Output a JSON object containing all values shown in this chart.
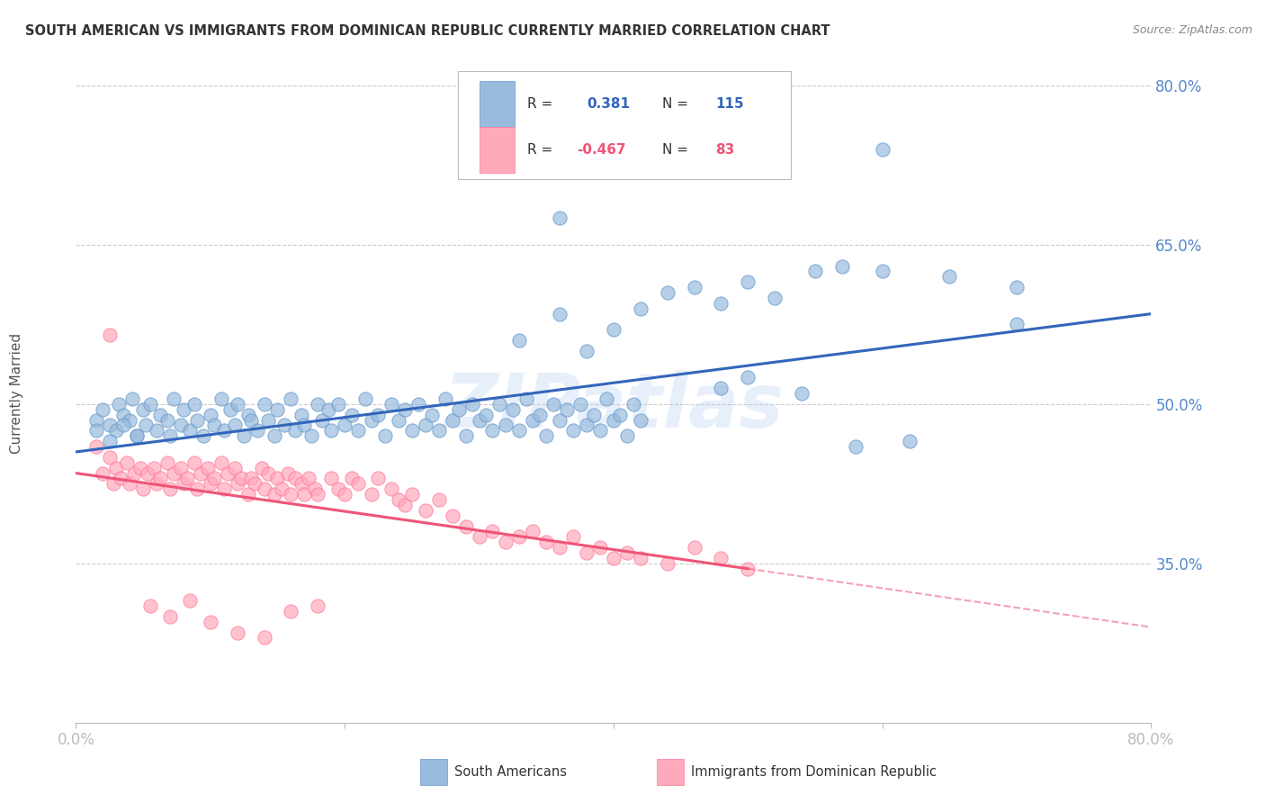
{
  "title": "SOUTH AMERICAN VS IMMIGRANTS FROM DOMINICAN REPUBLIC CURRENTLY MARRIED CORRELATION CHART",
  "source": "Source: ZipAtlas.com",
  "ylabel": "Currently Married",
  "watermark": "ZIPatlas",
  "blue_color": "#99BBDD",
  "blue_edge_color": "#6699CC",
  "pink_color": "#FFAABB",
  "pink_edge_color": "#FF7799",
  "blue_line_color": "#3366BB",
  "pink_line_color": "#EE5577",
  "y_tick_values": [
    35.0,
    50.0,
    65.0,
    80.0
  ],
  "x_tick_values": [
    0.0,
    20.0,
    40.0,
    60.0,
    80.0
  ],
  "blue_scatter": [
    [
      1.5,
      48.5
    ],
    [
      2.0,
      49.5
    ],
    [
      2.5,
      48.0
    ],
    [
      3.0,
      47.5
    ],
    [
      3.2,
      50.0
    ],
    [
      3.5,
      49.0
    ],
    [
      4.0,
      48.5
    ],
    [
      4.2,
      50.5
    ],
    [
      4.5,
      47.0
    ],
    [
      5.0,
      49.5
    ],
    [
      5.2,
      48.0
    ],
    [
      5.5,
      50.0
    ],
    [
      6.0,
      47.5
    ],
    [
      6.3,
      49.0
    ],
    [
      6.8,
      48.5
    ],
    [
      7.0,
      47.0
    ],
    [
      7.3,
      50.5
    ],
    [
      7.8,
      48.0
    ],
    [
      8.0,
      49.5
    ],
    [
      8.5,
      47.5
    ],
    [
      8.8,
      50.0
    ],
    [
      9.0,
      48.5
    ],
    [
      9.5,
      47.0
    ],
    [
      10.0,
      49.0
    ],
    [
      10.3,
      48.0
    ],
    [
      10.8,
      50.5
    ],
    [
      11.0,
      47.5
    ],
    [
      11.5,
      49.5
    ],
    [
      11.8,
      48.0
    ],
    [
      12.0,
      50.0
    ],
    [
      12.5,
      47.0
    ],
    [
      12.8,
      49.0
    ],
    [
      13.0,
      48.5
    ],
    [
      13.5,
      47.5
    ],
    [
      14.0,
      50.0
    ],
    [
      14.3,
      48.5
    ],
    [
      14.8,
      47.0
    ],
    [
      15.0,
      49.5
    ],
    [
      15.5,
      48.0
    ],
    [
      16.0,
      50.5
    ],
    [
      16.3,
      47.5
    ],
    [
      16.8,
      49.0
    ],
    [
      17.0,
      48.0
    ],
    [
      17.5,
      47.0
    ],
    [
      18.0,
      50.0
    ],
    [
      18.3,
      48.5
    ],
    [
      18.8,
      49.5
    ],
    [
      19.0,
      47.5
    ],
    [
      19.5,
      50.0
    ],
    [
      20.0,
      48.0
    ],
    [
      20.5,
      49.0
    ],
    [
      21.0,
      47.5
    ],
    [
      21.5,
      50.5
    ],
    [
      22.0,
      48.5
    ],
    [
      22.5,
      49.0
    ],
    [
      23.0,
      47.0
    ],
    [
      23.5,
      50.0
    ],
    [
      24.0,
      48.5
    ],
    [
      24.5,
      49.5
    ],
    [
      25.0,
      47.5
    ],
    [
      25.5,
      50.0
    ],
    [
      26.0,
      48.0
    ],
    [
      26.5,
      49.0
    ],
    [
      27.0,
      47.5
    ],
    [
      27.5,
      50.5
    ],
    [
      28.0,
      48.5
    ],
    [
      28.5,
      49.5
    ],
    [
      29.0,
      47.0
    ],
    [
      29.5,
      50.0
    ],
    [
      30.0,
      48.5
    ],
    [
      30.5,
      49.0
    ],
    [
      31.0,
      47.5
    ],
    [
      31.5,
      50.0
    ],
    [
      32.0,
      48.0
    ],
    [
      32.5,
      49.5
    ],
    [
      33.0,
      47.5
    ],
    [
      33.5,
      50.5
    ],
    [
      34.0,
      48.5
    ],
    [
      34.5,
      49.0
    ],
    [
      35.0,
      47.0
    ],
    [
      35.5,
      50.0
    ],
    [
      36.0,
      48.5
    ],
    [
      36.5,
      49.5
    ],
    [
      37.0,
      47.5
    ],
    [
      37.5,
      50.0
    ],
    [
      38.0,
      48.0
    ],
    [
      38.5,
      49.0
    ],
    [
      39.0,
      47.5
    ],
    [
      39.5,
      50.5
    ],
    [
      40.0,
      48.5
    ],
    [
      40.5,
      49.0
    ],
    [
      41.0,
      47.0
    ],
    [
      41.5,
      50.0
    ],
    [
      42.0,
      48.5
    ],
    [
      1.5,
      47.5
    ],
    [
      2.5,
      46.5
    ],
    [
      3.5,
      48.0
    ],
    [
      4.5,
      47.0
    ],
    [
      33.0,
      56.0
    ],
    [
      36.0,
      58.5
    ],
    [
      38.0,
      55.0
    ],
    [
      40.0,
      57.0
    ],
    [
      42.0,
      59.0
    ],
    [
      44.0,
      60.5
    ],
    [
      46.0,
      61.0
    ],
    [
      48.0,
      59.5
    ],
    [
      50.0,
      61.5
    ],
    [
      52.0,
      60.0
    ],
    [
      55.0,
      62.5
    ],
    [
      57.0,
      63.0
    ],
    [
      60.0,
      62.5
    ],
    [
      65.0,
      62.0
    ],
    [
      70.0,
      61.0
    ],
    [
      36.0,
      67.5
    ],
    [
      60.0,
      74.0
    ],
    [
      48.0,
      51.5
    ],
    [
      50.0,
      52.5
    ],
    [
      54.0,
      51.0
    ],
    [
      58.0,
      46.0
    ],
    [
      62.0,
      46.5
    ],
    [
      70.0,
      57.5
    ]
  ],
  "pink_scatter": [
    [
      1.5,
      46.0
    ],
    [
      2.0,
      43.5
    ],
    [
      2.5,
      45.0
    ],
    [
      2.8,
      42.5
    ],
    [
      3.0,
      44.0
    ],
    [
      3.3,
      43.0
    ],
    [
      3.8,
      44.5
    ],
    [
      4.0,
      42.5
    ],
    [
      4.3,
      43.5
    ],
    [
      4.8,
      44.0
    ],
    [
      5.0,
      42.0
    ],
    [
      5.3,
      43.5
    ],
    [
      5.8,
      44.0
    ],
    [
      6.0,
      42.5
    ],
    [
      6.3,
      43.0
    ],
    [
      6.8,
      44.5
    ],
    [
      7.0,
      42.0
    ],
    [
      7.3,
      43.5
    ],
    [
      7.8,
      44.0
    ],
    [
      8.0,
      42.5
    ],
    [
      8.3,
      43.0
    ],
    [
      8.8,
      44.5
    ],
    [
      9.0,
      42.0
    ],
    [
      9.3,
      43.5
    ],
    [
      9.8,
      44.0
    ],
    [
      10.0,
      42.5
    ],
    [
      10.3,
      43.0
    ],
    [
      10.8,
      44.5
    ],
    [
      11.0,
      42.0
    ],
    [
      11.3,
      43.5
    ],
    [
      11.8,
      44.0
    ],
    [
      12.0,
      42.5
    ],
    [
      12.3,
      43.0
    ],
    [
      12.8,
      41.5
    ],
    [
      13.0,
      43.0
    ],
    [
      13.3,
      42.5
    ],
    [
      13.8,
      44.0
    ],
    [
      14.0,
      42.0
    ],
    [
      14.3,
      43.5
    ],
    [
      14.8,
      41.5
    ],
    [
      15.0,
      43.0
    ],
    [
      15.3,
      42.0
    ],
    [
      15.8,
      43.5
    ],
    [
      16.0,
      41.5
    ],
    [
      16.3,
      43.0
    ],
    [
      16.8,
      42.5
    ],
    [
      17.0,
      41.5
    ],
    [
      17.3,
      43.0
    ],
    [
      17.8,
      42.0
    ],
    [
      18.0,
      41.5
    ],
    [
      19.0,
      43.0
    ],
    [
      19.5,
      42.0
    ],
    [
      20.0,
      41.5
    ],
    [
      20.5,
      43.0
    ],
    [
      21.0,
      42.5
    ],
    [
      22.0,
      41.5
    ],
    [
      22.5,
      43.0
    ],
    [
      23.5,
      42.0
    ],
    [
      24.0,
      41.0
    ],
    [
      24.5,
      40.5
    ],
    [
      25.0,
      41.5
    ],
    [
      26.0,
      40.0
    ],
    [
      27.0,
      41.0
    ],
    [
      28.0,
      39.5
    ],
    [
      29.0,
      38.5
    ],
    [
      30.0,
      37.5
    ],
    [
      31.0,
      38.0
    ],
    [
      32.0,
      37.0
    ],
    [
      33.0,
      37.5
    ],
    [
      34.0,
      38.0
    ],
    [
      35.0,
      37.0
    ],
    [
      36.0,
      36.5
    ],
    [
      37.0,
      37.5
    ],
    [
      38.0,
      36.0
    ],
    [
      39.0,
      36.5
    ],
    [
      40.0,
      35.5
    ],
    [
      41.0,
      36.0
    ],
    [
      42.0,
      35.5
    ],
    [
      44.0,
      35.0
    ],
    [
      46.0,
      36.5
    ],
    [
      48.0,
      35.5
    ],
    [
      50.0,
      34.5
    ],
    [
      2.5,
      56.5
    ],
    [
      5.5,
      31.0
    ],
    [
      7.0,
      30.0
    ],
    [
      8.5,
      31.5
    ],
    [
      10.0,
      29.5
    ],
    [
      12.0,
      28.5
    ],
    [
      14.0,
      28.0
    ],
    [
      16.0,
      30.5
    ],
    [
      18.0,
      31.0
    ]
  ],
  "blue_line": {
    "x0": 0,
    "x1": 80,
    "y0": 45.5,
    "y1": 58.5
  },
  "pink_line_solid": {
    "x0": 0,
    "x1": 50,
    "y0": 43.5,
    "y1": 34.5
  },
  "pink_line_dashed": {
    "x0": 50,
    "x1": 80,
    "y0": 34.5,
    "y1": 29.0
  },
  "xlim": [
    0,
    80
  ],
  "ylim": [
    20,
    82
  ],
  "grid_color": "#cccccc",
  "background_color": "#ffffff",
  "title_color": "#333333",
  "axis_tick_color": "#5588CC",
  "ylabel_color": "#555555",
  "legend_r_color": "#333333",
  "watermark_color": "#AACCEE"
}
